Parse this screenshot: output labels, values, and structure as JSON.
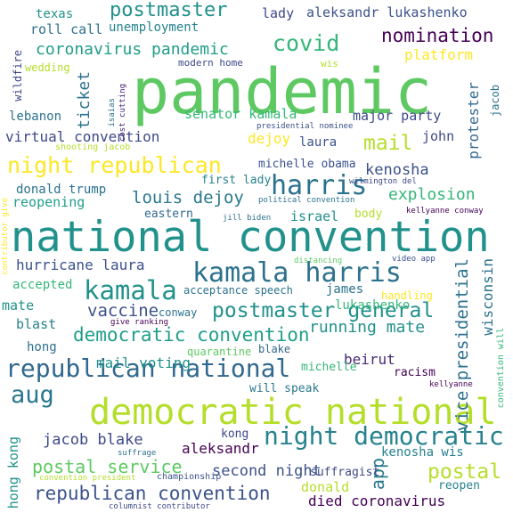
{
  "cloud": {
    "words": [
      {
        "text": "pandemic",
        "color": "#5ec962"
      },
      {
        "text": "national convention",
        "color": "#21918c"
      },
      {
        "text": "democratic national",
        "color": "#b5de2b"
      },
      {
        "text": "kamala harris",
        "color": "#2c728e"
      },
      {
        "text": "republican national",
        "color": "#31688e"
      },
      {
        "text": "night democratic",
        "color": "#26828e"
      },
      {
        "text": "harris",
        "color": "#2c728e"
      },
      {
        "text": "night republican",
        "color": "#fde725"
      },
      {
        "text": "postmaster general",
        "color": "#21918c"
      },
      {
        "text": "kamala",
        "color": "#21918c"
      },
      {
        "text": "democratic convention",
        "color": "#1f9e89"
      },
      {
        "text": "republican convention",
        "color": "#3b528b"
      },
      {
        "text": "nomination",
        "color": "#440154"
      },
      {
        "text": "covid",
        "color": "#35b779"
      },
      {
        "text": "postmaster",
        "color": "#21918c"
      },
      {
        "text": "aug",
        "color": "#2a788e"
      },
      {
        "text": "postal service",
        "color": "#5ec962"
      },
      {
        "text": "coronavirus pandemic",
        "color": "#1f9e89"
      },
      {
        "text": "mail",
        "color": "#b5de2b"
      },
      {
        "text": "postal",
        "color": "#b5de2b"
      },
      {
        "text": "vice presidential",
        "color": "#2c728e"
      },
      {
        "text": "running mate",
        "color": "#21918c"
      },
      {
        "text": "louis dejoy",
        "color": "#2a788e"
      },
      {
        "text": "explosion",
        "color": "#35b779"
      },
      {
        "text": "vaccine",
        "color": "#3b528b"
      },
      {
        "text": "jacob blake",
        "color": "#3e4989"
      },
      {
        "text": "second night",
        "color": "#3b528b"
      },
      {
        "text": "aleksandr lukashenko",
        "color": "#3b528b"
      },
      {
        "text": "died coronavirus",
        "color": "#440154"
      },
      {
        "text": "platform",
        "color": "#fde725"
      },
      {
        "text": "kenosha",
        "color": "#3b528b"
      },
      {
        "text": "hurricane laura",
        "color": "#3b528b"
      },
      {
        "text": "virtual convention",
        "color": "#3e4989"
      },
      {
        "text": "mail voting",
        "color": "#21918c"
      },
      {
        "text": "roll call",
        "color": "#2c728e"
      },
      {
        "text": "senator kamala",
        "color": "#35b779"
      },
      {
        "text": "major party",
        "color": "#3e4989"
      },
      {
        "text": "protester",
        "color": "#31688e"
      },
      {
        "text": "wisconsin",
        "color": "#2c728e"
      },
      {
        "text": "aleksandr",
        "color": "#440154"
      },
      {
        "text": "app",
        "color": "#2a788e"
      },
      {
        "text": "israel",
        "color": "#21918c"
      },
      {
        "text": "reopening",
        "color": "#1f9e89"
      },
      {
        "text": "donald trump",
        "color": "#2c728e"
      },
      {
        "text": "michelle obama",
        "color": "#3b528b"
      },
      {
        "text": "dejoy",
        "color": "#fde725"
      },
      {
        "text": "ticket",
        "color": "#2c728e"
      },
      {
        "text": "beirut",
        "color": "#482878"
      },
      {
        "text": "lukashenko",
        "color": "#35b779"
      },
      {
        "text": "kenosha wis",
        "color": "#26828e"
      },
      {
        "text": "reopen",
        "color": "#26828e"
      },
      {
        "text": "donald",
        "color": "#b5de2b"
      },
      {
        "text": "hong kong",
        "color": "#21918c"
      },
      {
        "text": "texas",
        "color": "#21918c"
      },
      {
        "text": "unemployment",
        "color": "#26828e"
      },
      {
        "text": "lady",
        "color": "#3e4989"
      },
      {
        "text": "laura",
        "color": "#3b528b"
      },
      {
        "text": "john",
        "color": "#3e4989"
      },
      {
        "text": "mate",
        "color": "#21918c"
      },
      {
        "text": "accepted",
        "color": "#35b779"
      },
      {
        "text": "blast",
        "color": "#26828e"
      },
      {
        "text": "hong",
        "color": "#2c728e"
      },
      {
        "text": "james",
        "color": "#2c728e"
      },
      {
        "text": "acceptance speech",
        "color": "#2c728e"
      },
      {
        "text": "lebanon",
        "color": "#2c728e"
      },
      {
        "text": "eastern",
        "color": "#31688e"
      },
      {
        "text": "body",
        "color": "#b5de2b"
      },
      {
        "text": "first lady",
        "color": "#26828e"
      },
      {
        "text": "suffragist",
        "color": "#3e4989"
      },
      {
        "text": "kong",
        "color": "#3e4989"
      },
      {
        "text": "will speak",
        "color": "#2a788e"
      },
      {
        "text": "racism",
        "color": "#440154"
      },
      {
        "text": "michelle",
        "color": "#35b779"
      },
      {
        "text": "conway",
        "color": "#2c728e"
      },
      {
        "text": "quarantine",
        "color": "#5ec962"
      },
      {
        "text": "blake",
        "color": "#31688e"
      },
      {
        "text": "handling",
        "color": "#fde725"
      },
      {
        "text": "wedding",
        "color": "#b5de2b"
      },
      {
        "text": "wildfire",
        "color": "#3e4989"
      },
      {
        "text": "modern home",
        "color": "#3e4989"
      },
      {
        "text": "wis",
        "color": "#b5de2b"
      },
      {
        "text": "jacob",
        "color": "#2c728e"
      },
      {
        "text": "isaias",
        "color": "#2c728e"
      },
      {
        "text": "cost cutting",
        "color": "#482878"
      },
      {
        "text": "presidential nominee",
        "color": "#3b528b"
      },
      {
        "text": "shooting jacob",
        "color": "#b5de2b"
      },
      {
        "text": "wilmington del",
        "color": "#3e4989"
      },
      {
        "text": "political convention",
        "color": "#2c728e"
      },
      {
        "text": "jill biden",
        "color": "#2c728e"
      },
      {
        "text": "kellyanne conway",
        "color": "#440154"
      },
      {
        "text": "distancing",
        "color": "#5ec962"
      },
      {
        "text": "video app",
        "color": "#3b528b"
      },
      {
        "text": "give ranking",
        "color": "#440154"
      },
      {
        "text": "contributor give",
        "color": "#fde725"
      },
      {
        "text": "convention will",
        "color": "#35b779"
      },
      {
        "text": "kellyanne",
        "color": "#440154"
      },
      {
        "text": "suffrage",
        "color": "#2c728e"
      },
      {
        "text": "championship",
        "color": "#3b528b"
      },
      {
        "text": "convention president",
        "color": "#b5de2b"
      },
      {
        "text": "columnist contributor",
        "color": "#3e4989"
      }
    ]
  }
}
